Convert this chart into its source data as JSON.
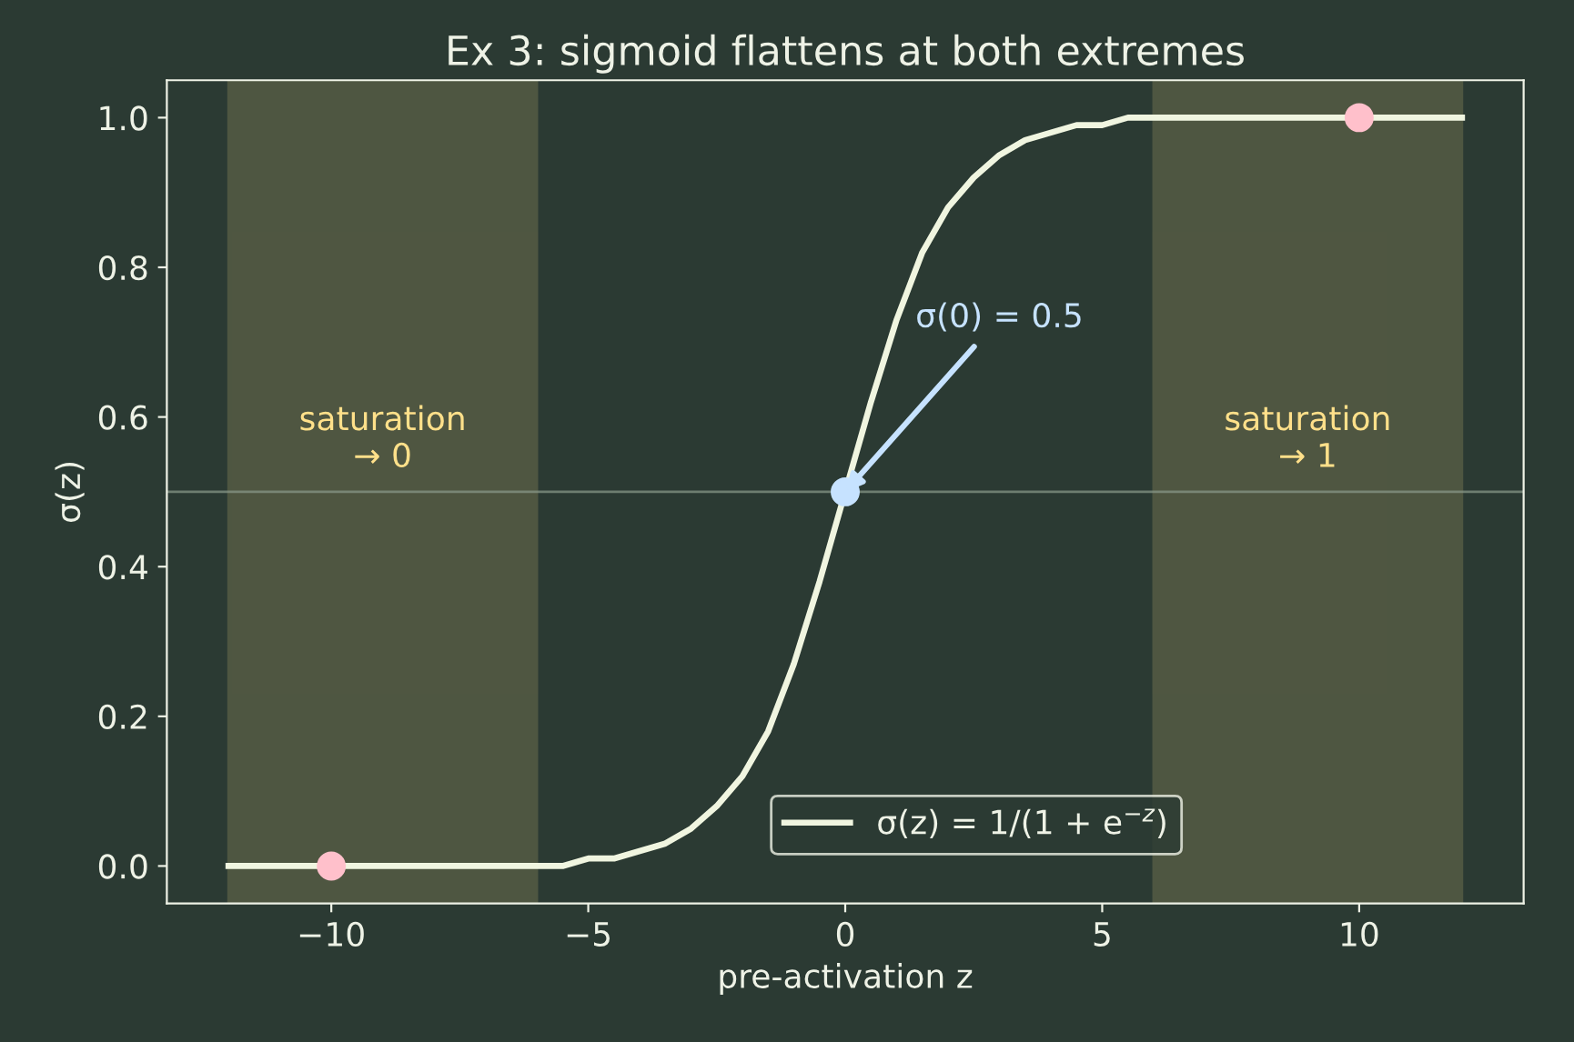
{
  "chart_data": {
    "type": "line",
    "title": "Ex 3: sigmoid flattens at both extremes",
    "xlabel": "pre-activation z",
    "ylabel": "σ(z)",
    "series": [
      {
        "name": "σ(z) = 1/(1 + e$^{−z}$)",
        "color": "#f0f5e0",
        "x": [
          -12,
          -11,
          -10,
          -9,
          -8,
          -7,
          -6,
          -5.5,
          -5,
          -4.5,
          -4,
          -3.5,
          -3,
          -2.5,
          -2,
          -1.5,
          -1,
          -0.5,
          0,
          0.5,
          1,
          1.5,
          2,
          2.5,
          3,
          3.5,
          4,
          4.5,
          5,
          5.5,
          6,
          7,
          8,
          9,
          10,
          11,
          12
        ],
        "values": [
          0,
          0,
          0,
          0,
          0,
          0,
          0,
          0,
          0.01,
          0.01,
          0.02,
          0.03,
          0.05,
          0.08,
          0.12,
          0.18,
          0.27,
          0.38,
          0.5,
          0.62,
          0.73,
          0.82,
          0.88,
          0.92,
          0.95,
          0.97,
          0.98,
          0.99,
          0.99,
          1,
          1,
          1,
          1,
          1,
          1,
          1,
          1
        ]
      },
      {
        "type": "scatter",
        "color": "#ffc0cb",
        "x": [
          -10,
          10
        ],
        "values": [
          0,
          1
        ]
      },
      {
        "type": "scatter",
        "color": "#c6e2ff",
        "x": [
          0
        ],
        "values": [
          0.5
        ]
      }
    ],
    "xlim": [
      -13.2,
      13.2
    ],
    "ylim": [
      -0.05,
      1.05
    ],
    "xticks": [
      {
        "value": -10,
        "label": "−10"
      },
      {
        "value": -5,
        "label": "−5"
      },
      0,
      5,
      10
    ],
    "yticks": [
      {
        "value": 0,
        "label": "0.0"
      },
      {
        "value": 0.2,
        "label": "0.2"
      },
      {
        "value": 0.4,
        "label": "0.4"
      },
      {
        "value": 0.6,
        "label": "0.6"
      },
      {
        "value": 0.8,
        "label": "0.8"
      },
      {
        "value": 1,
        "label": "1.0"
      }
    ],
    "ref_lines": [
      {
        "axis": "y",
        "value": 0.5,
        "color": "#8a9a8a"
      }
    ],
    "bands": [
      {
        "axis": "x",
        "from": -12,
        "to": -6,
        "label": "saturation\n→ 0",
        "color": "#ffe08a"
      },
      {
        "axis": "x",
        "from": 6,
        "to": 12,
        "label": "saturation\n→ 1",
        "color": "#ffe08a"
      }
    ],
    "annotations": [
      {
        "text": "σ(0) = 0.5",
        "x": 0,
        "y": 0.5
      }
    ],
    "legend": "bottom right",
    "grid": false
  }
}
